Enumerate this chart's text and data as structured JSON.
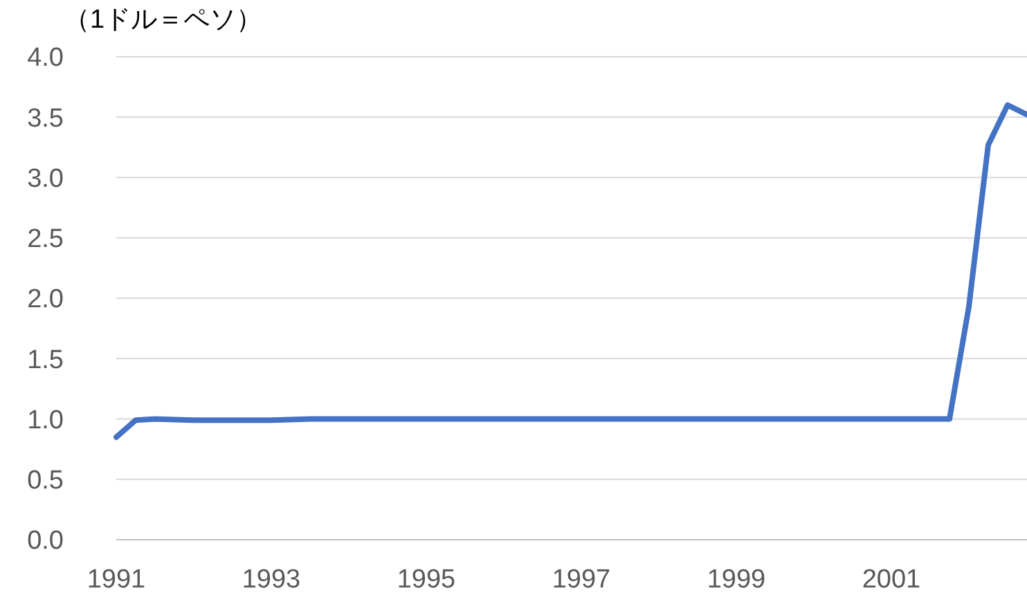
{
  "chart_data": {
    "type": "line",
    "ylabel": "（1ドル＝ペソ）",
    "x": [
      1991,
      1991.25,
      1991.5,
      1992,
      1992.5,
      1993,
      1993.5,
      1994,
      1994.5,
      1995,
      1995.5,
      1996,
      1997,
      1998,
      1999,
      2000,
      2001,
      2001.75,
      2002,
      2002.25,
      2002.5,
      2002.75
    ],
    "series": [
      {
        "color": "#4472c4",
        "values": [
          0.85,
          0.99,
          1.0,
          0.99,
          0.99,
          0.99,
          1.0,
          1.0,
          1.0,
          1.0,
          1.0,
          1.0,
          1.0,
          1.0,
          1.0,
          1.0,
          1.0,
          1.0,
          1.93,
          3.27,
          3.6,
          3.52
        ]
      }
    ],
    "xlim": [
      1991,
      2002.75
    ],
    "xticks": [
      1991,
      1993,
      1995,
      1997,
      1999,
      2001
    ],
    "ylim": [
      0,
      4
    ],
    "yticks": [
      {
        "value": 0,
        "label": "0.0"
      },
      {
        "value": 0.5,
        "label": "0.5"
      },
      {
        "value": 1,
        "label": "1.0"
      },
      {
        "value": 1.5,
        "label": "1.5"
      },
      {
        "value": 2,
        "label": "2.0"
      },
      {
        "value": 2.5,
        "label": "2.5"
      },
      {
        "value": 3,
        "label": "3.0"
      },
      {
        "value": 3.5,
        "label": "3.5"
      },
      {
        "value": 4,
        "label": "4.0"
      }
    ],
    "grid": "y",
    "legend": false,
    "marker": "none",
    "line_style": "solid"
  }
}
